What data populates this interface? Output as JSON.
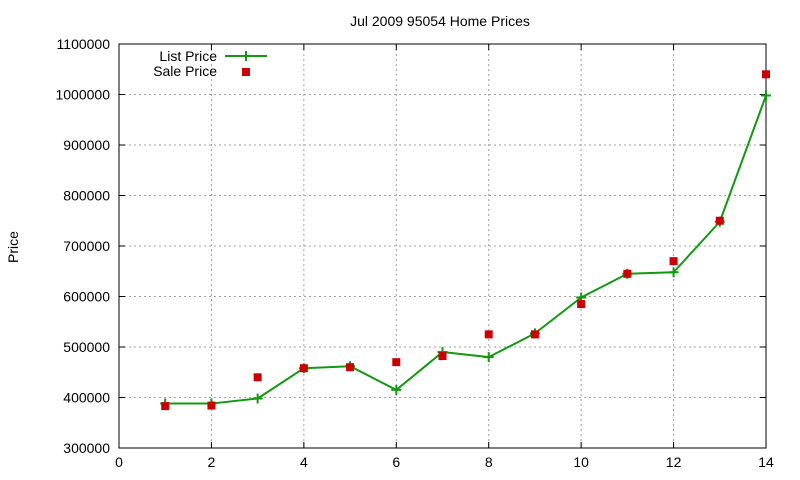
{
  "chart_data": {
    "type": "line",
    "title": "Jul 2009 95054 Home Prices",
    "xlabel": "",
    "ylabel": "Price",
    "xlim": [
      0,
      14
    ],
    "ylim": [
      300000,
      1100000
    ],
    "x_ticks": [
      0,
      2,
      4,
      6,
      8,
      10,
      12,
      14
    ],
    "y_ticks": [
      300000,
      400000,
      500000,
      600000,
      700000,
      800000,
      900000,
      1000000,
      1100000
    ],
    "grid": true,
    "legend_position": "top-left",
    "series": [
      {
        "name": "List Price",
        "kind": "line",
        "marker": "plus",
        "color": "#119911",
        "x": [
          1,
          2,
          3,
          4,
          5,
          6,
          7,
          8,
          9,
          10,
          11,
          12,
          13,
          14
        ],
        "y": [
          388000,
          388000,
          398000,
          458000,
          462000,
          415000,
          490000,
          480000,
          527000,
          598000,
          645000,
          648000,
          748000,
          998000
        ]
      },
      {
        "name": "Sale Price",
        "kind": "scatter",
        "marker": "square",
        "color": "#cc0000",
        "x": [
          1,
          2,
          3,
          4,
          5,
          6,
          7,
          8,
          9,
          10,
          11,
          12,
          13,
          14
        ],
        "y": [
          383000,
          384000,
          440000,
          458000,
          460000,
          470000,
          482000,
          525000,
          525000,
          585000,
          645000,
          670000,
          750000,
          1040000
        ]
      }
    ]
  }
}
